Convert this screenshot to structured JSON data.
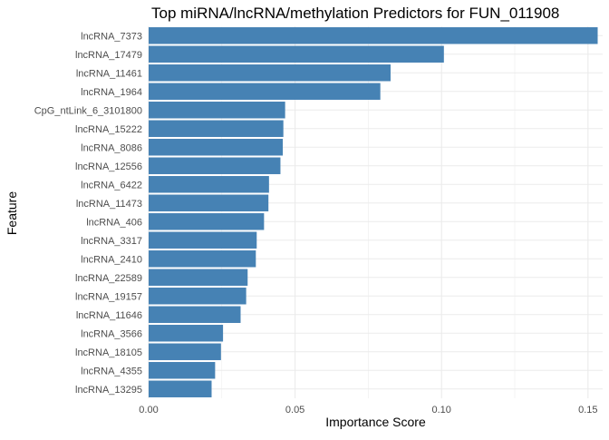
{
  "chart_data": {
    "type": "bar",
    "orientation": "horizontal",
    "title": "Top miRNA/lncRNA/methylation Predictors for FUN_011908",
    "xlabel": "Importance Score",
    "ylabel": "Feature",
    "xlim": [
      0,
      0.155
    ],
    "xticks": [
      0.0,
      0.05,
      0.1,
      0.15
    ],
    "xtick_labels": [
      "0.00",
      "0.05",
      "0.10",
      "0.15"
    ],
    "grid": true,
    "bar_color": "#4682B4",
    "categories": [
      "lncRNA_7373",
      "lncRNA_17479",
      "lncRNA_11461",
      "lncRNA_1964",
      "CpG_ntLink_6_3101800",
      "lncRNA_15222",
      "lncRNA_8086",
      "lncRNA_12556",
      "lncRNA_6422",
      "lncRNA_11473",
      "lncRNA_406",
      "lncRNA_3317",
      "lncRNA_2410",
      "lncRNA_22589",
      "lncRNA_19157",
      "lncRNA_11646",
      "lncRNA_3566",
      "lncRNA_18105",
      "lncRNA_4355",
      "lncRNA_13295"
    ],
    "values": [
      0.1533,
      0.1008,
      0.0826,
      0.0791,
      0.0466,
      0.046,
      0.0458,
      0.045,
      0.0411,
      0.0409,
      0.0394,
      0.0369,
      0.0366,
      0.0338,
      0.0333,
      0.0314,
      0.0254,
      0.0247,
      0.0227,
      0.0215
    ]
  }
}
